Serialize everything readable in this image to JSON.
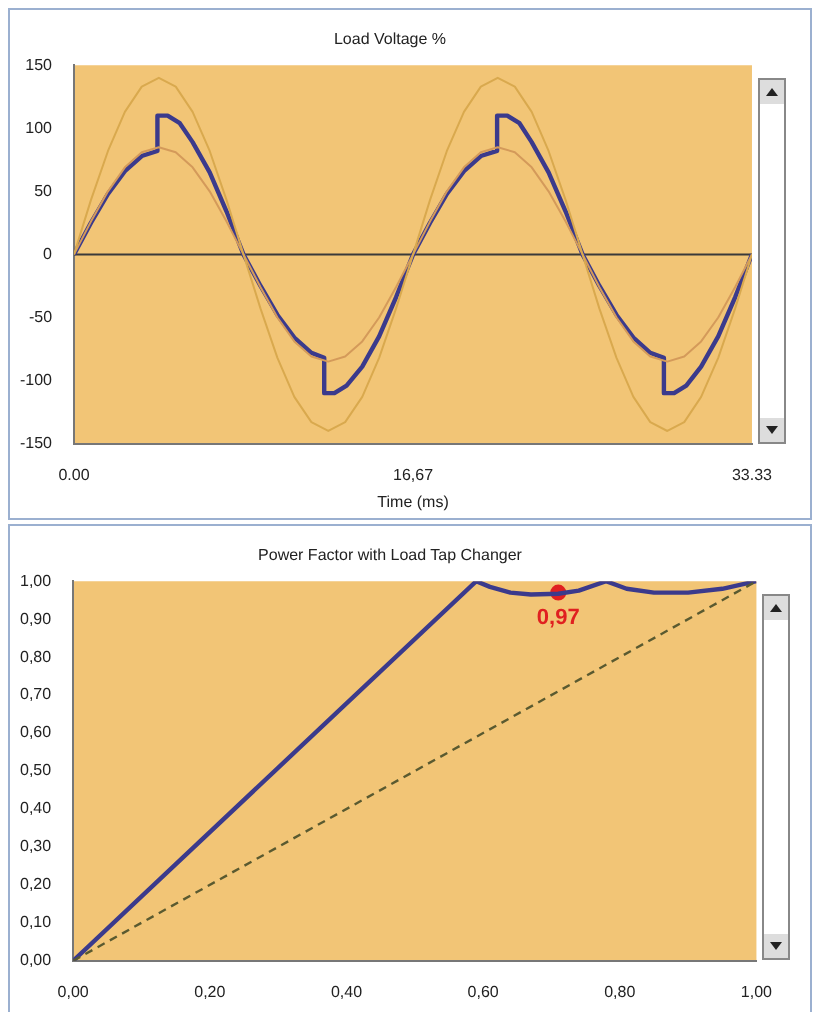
{
  "chart_data": [
    {
      "type": "line",
      "title": "Load Voltage %",
      "xlabel": "Time (ms)",
      "xlim": [
        0,
        33.33
      ],
      "xticks": [
        {
          "value": 0,
          "label": "0.00"
        },
        {
          "value": 16.67,
          "label": "16,67"
        },
        {
          "value": 33.33,
          "label": "33.33"
        }
      ],
      "ylim": [
        -150,
        150
      ],
      "yticks": [
        -150,
        -100,
        -50,
        0,
        50,
        100,
        150
      ],
      "marker": "none",
      "legend": false,
      "ref_lines": [
        {
          "axis": "y",
          "value": 0,
          "color": "#3a3a3a"
        }
      ],
      "series": [
        {
          "color": "#d9a94e",
          "x": [
            0,
            0.83,
            1.67,
            2.5,
            3.33,
            4.17,
            5,
            5.83,
            6.67,
            7.5,
            8.33,
            9.17,
            10,
            10.83,
            11.67,
            12.5,
            13.33,
            14.17,
            15,
            15.83,
            16.67,
            17.5,
            18.33,
            19.17,
            20,
            20.83,
            21.67,
            22.5,
            23.33,
            24.17,
            25,
            25.83,
            26.67,
            27.5,
            28.33,
            29.17,
            30,
            30.83,
            31.67,
            32.5,
            33.33
          ],
          "values": [
            0,
            43,
            82,
            113,
            133,
            140,
            133,
            113,
            82,
            43,
            0,
            -43,
            -82,
            -113,
            -133,
            -140,
            -133,
            -113,
            -82,
            -43,
            0,
            43,
            82,
            113,
            133,
            140,
            133,
            113,
            82,
            43,
            0,
            -43,
            -82,
            -113,
            -133,
            -140,
            -133,
            -113,
            -82,
            -43,
            0
          ]
        },
        {
          "color": "#d49a5a",
          "x": [
            0,
            0.83,
            1.67,
            2.5,
            3.33,
            4.17,
            5,
            5.83,
            6.67,
            7.5,
            8.33,
            9.17,
            10,
            10.83,
            11.67,
            12.5,
            13.33,
            14.17,
            15,
            15.83,
            16.67,
            17.5,
            18.33,
            19.17,
            20,
            20.83,
            21.67,
            22.5,
            23.33,
            24.17,
            25,
            25.83,
            26.67,
            27.5,
            28.33,
            29.17,
            30,
            30.83,
            31.67,
            32.5,
            33.33
          ],
          "values": [
            0,
            26,
            50,
            69,
            81,
            85,
            81,
            69,
            50,
            26,
            0,
            -26,
            -50,
            -69,
            -81,
            -85,
            -81,
            -69,
            -50,
            -26,
            0,
            26,
            50,
            69,
            81,
            85,
            81,
            69,
            50,
            26,
            0,
            -26,
            -50,
            -69,
            -81,
            -85,
            -81,
            -69,
            -50,
            -26,
            0
          ]
        },
        {
          "color": "#3b3a8c",
          "x": [
            0,
            0.83,
            1.67,
            2.5,
            3.33,
            4.1,
            4.1,
            4.6,
            5.2,
            5.83,
            6.67,
            7.5,
            8.33,
            9.17,
            10,
            10.83,
            11.67,
            12.3,
            12.3,
            12.8,
            13.4,
            14.17,
            15,
            15.83,
            16.67,
            17.5,
            18.33,
            19.17,
            20,
            20.8,
            20.8,
            21.3,
            21.9,
            22.5,
            23.33,
            24.17,
            25,
            25.83,
            26.67,
            27.5,
            28.33,
            29,
            29,
            29.5,
            30.1,
            30.83,
            31.67,
            32.5,
            33.33
          ],
          "values": [
            0,
            25,
            48,
            66,
            78,
            82,
            110,
            110,
            104,
            89,
            65,
            34,
            0,
            -25,
            -48,
            -66,
            -78,
            -82,
            -110,
            -110,
            -104,
            -89,
            -65,
            -34,
            0,
            25,
            48,
            66,
            78,
            82,
            110,
            110,
            104,
            89,
            65,
            34,
            0,
            -25,
            -48,
            -66,
            -78,
            -82,
            -110,
            -110,
            -104,
            -89,
            -65,
            -34,
            0
          ]
        }
      ]
    },
    {
      "type": "line",
      "title": "Power Factor with Load Tap Changer",
      "xlim": [
        0,
        1
      ],
      "xticks": [
        {
          "value": 0,
          "label": "0,00"
        },
        {
          "value": 0.2,
          "label": "0,20"
        },
        {
          "value": 0.4,
          "label": "0,40"
        },
        {
          "value": 0.6,
          "label": "0,60"
        },
        {
          "value": 0.8,
          "label": "0,80"
        },
        {
          "value": 1,
          "label": "1,00"
        }
      ],
      "ylim": [
        0,
        1
      ],
      "yticks": [
        {
          "value": 0,
          "label": "0,00"
        },
        {
          "value": 0.1,
          "label": "0,10"
        },
        {
          "value": 0.2,
          "label": "0,20"
        },
        {
          "value": 0.3,
          "label": "0,30"
        },
        {
          "value": 0.4,
          "label": "0,40"
        },
        {
          "value": 0.5,
          "label": "0,50"
        },
        {
          "value": 0.6,
          "label": "0,60"
        },
        {
          "value": 0.7,
          "label": "0,70"
        },
        {
          "value": 0.8,
          "label": "0,80"
        },
        {
          "value": 0.9,
          "label": "0,90"
        },
        {
          "value": 1,
          "label": "1,00"
        }
      ],
      "marker": "none",
      "legend": false,
      "series": [
        {
          "color": "#5a5a30",
          "line_style": "dashed",
          "x": [
            0,
            1
          ],
          "values": [
            0,
            1
          ]
        },
        {
          "color": "#3b3a8c",
          "x": [
            0,
            0.59,
            0.61,
            0.64,
            0.67,
            0.71,
            0.74,
            0.78,
            0.81,
            0.85,
            0.9,
            0.95,
            1
          ],
          "values": [
            0,
            1,
            0.985,
            0.97,
            0.965,
            0.967,
            0.975,
            1,
            0.98,
            0.97,
            0.97,
            0.98,
            1
          ]
        },
        {
          "type": "scatter",
          "marker": "circle",
          "color": "#e02020",
          "x": [
            0.71
          ],
          "values": [
            0.97
          ],
          "value_labels": [
            "0,97"
          ]
        }
      ]
    }
  ]
}
